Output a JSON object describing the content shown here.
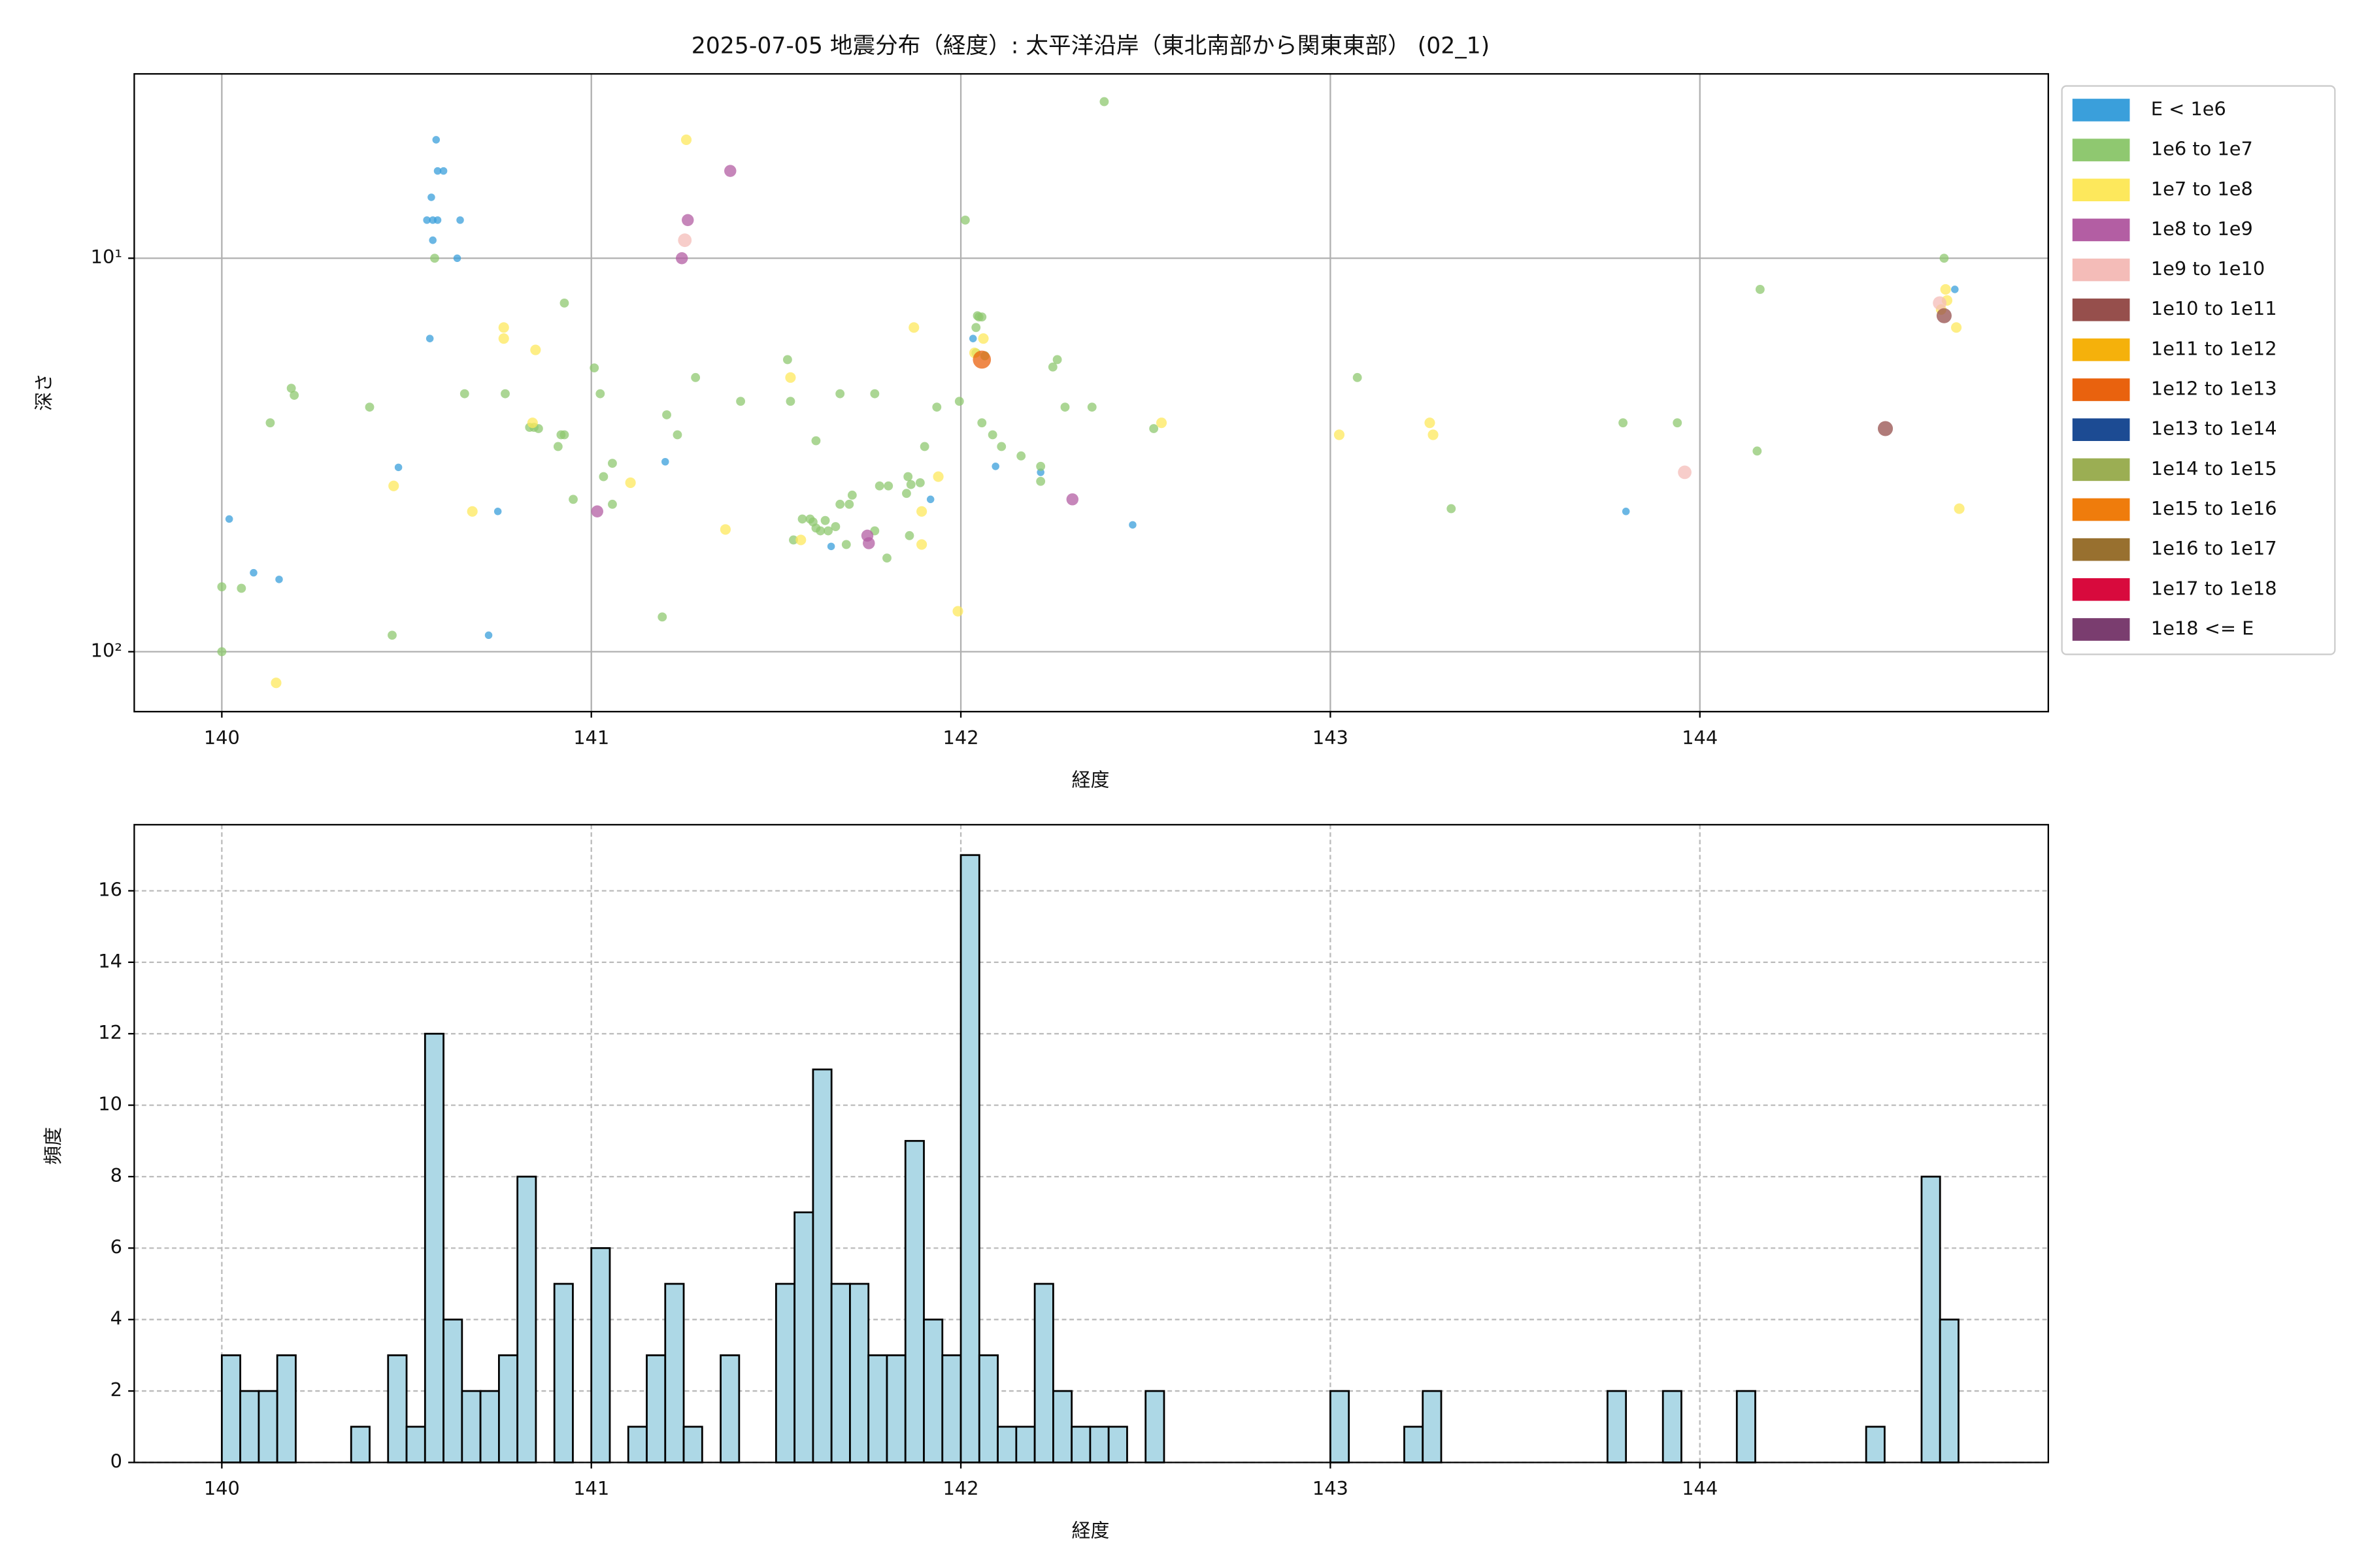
{
  "chart_data": [
    {
      "type": "scatter",
      "title": "2025-07-05 地震分布（経度）: 太平洋沿岸（東北南部から関東東部） (02_1)",
      "x_label": "経度",
      "y_label": "深さ",
      "xlim": [
        139.763,
        144.943
      ],
      "ylim": [
        142,
        3.4
      ],
      "y_scale": "log",
      "grid": true,
      "legend_position": "right",
      "xticks": [
        140,
        141,
        142,
        143,
        144
      ],
      "yticks": [
        {
          "value": 10,
          "label": "10¹"
        },
        {
          "value": 100,
          "label": "10²"
        }
      ],
      "series": [
        {
          "name": "E < 1e6",
          "color": "#3a9fdb",
          "x": [
            140.58,
            140.584,
            140.6,
            140.567,
            140.555,
            140.571,
            140.584,
            140.645,
            140.571,
            140.637,
            140.563,
            140.478,
            140.02,
            140.086,
            140.155,
            140.747,
            140.722,
            141.2,
            141.918,
            141.649,
            142.033,
            142.094,
            142.216,
            142.465,
            143.8,
            144.69
          ],
          "y": [
            5.0,
            6.0,
            6.0,
            7.0,
            8.0,
            8.0,
            8.0,
            8.0,
            9.0,
            10,
            16.0,
            34,
            46.0,
            63,
            65.5,
            44.0,
            90.8,
            32.9,
            41.0,
            54,
            16.0,
            33.8,
            35,
            47.6,
            44.0,
            12.0
          ]
        },
        {
          "name": "1e6 to 1e7",
          "color": "#8fc870",
          "x": [
            140.0,
            140.0,
            140.053,
            140.131,
            140.188,
            140.196,
            140.4,
            140.461,
            140.576,
            140.657,
            140.767,
            140.833,
            140.845,
            140.857,
            140.918,
            140.91,
            140.927,
            140.927,
            140.951,
            141.008,
            141.024,
            141.033,
            141.057,
            141.057,
            141.204,
            141.233,
            141.192,
            141.282,
            141.404,
            141.531,
            141.539,
            141.608,
            141.547,
            141.571,
            141.592,
            141.6,
            141.608,
            141.62,
            141.633,
            141.641,
            141.661,
            141.698,
            141.673,
            141.706,
            141.69,
            141.78,
            141.767,
            141.673,
            141.767,
            141.804,
            141.8,
            141.857,
            141.853,
            141.865,
            141.89,
            141.902,
            141.861,
            141.935,
            141.996,
            142.012,
            142.041,
            142.045,
            142.049,
            142.057,
            142.041,
            142.065,
            142.057,
            142.086,
            142.11,
            142.163,
            142.216,
            142.216,
            142.249,
            142.261,
            142.282,
            142.355,
            142.522,
            142.388,
            143.073,
            143.327,
            143.792,
            143.939,
            144.155,
            144.163,
            144.661
          ],
          "y": [
            68.4,
            100,
            69.0,
            26.2,
            21.4,
            22.3,
            23.9,
            90.8,
            10,
            22.1,
            22.1,
            26.9,
            26.9,
            27.1,
            28.1,
            30.1,
            28.1,
            13.0,
            41.0,
            19.0,
            22.1,
            35.9,
            33.2,
            42.2,
            25.0,
            28.1,
            81.6,
            20.1,
            23.1,
            18.1,
            23.1,
            29.1,
            52.0,
            46.0,
            46.0,
            46.8,
            48.5,
            49.3,
            46.4,
            49.3,
            48.1,
            42.2,
            42.2,
            40.0,
            53.4,
            37.9,
            49.3,
            22.1,
            22.1,
            37.9,
            57.8,
            35.9,
            39.6,
            37.6,
            37.2,
            30.1,
            50.7,
            23.9,
            23.1,
            8.0,
            15.0,
            14.0,
            14.1,
            14.1,
            17.4,
            17.7,
            26.2,
            28.1,
            30.1,
            31.8,
            33.8,
            36.9,
            18.9,
            18.1,
            23.9,
            23.9,
            27.1,
            4.0,
            20.1,
            43.3,
            26.2,
            26.2,
            30.9,
            12.0,
            10
          ]
        },
        {
          "name": "1e7 to 1e8",
          "color": "#fde85c",
          "x": [
            140.147,
            140.465,
            140.678,
            140.763,
            140.763,
            140.849,
            140.841,
            141.106,
            141.257,
            141.363,
            141.539,
            141.567,
            141.873,
            141.894,
            141.894,
            141.939,
            141.992,
            142.061,
            142.037,
            142.543,
            143.024,
            143.269,
            143.278,
            144.665,
            144.669,
            144.694,
            144.702,
            144.653
          ],
          "y": [
            120,
            37.9,
            44.0,
            16.0,
            15.0,
            17.1,
            26.2,
            37.2,
            5.0,
            48.9,
            20.1,
            52.0,
            15.0,
            44.0,
            53.4,
            35.9,
            78.9,
            16.0,
            17.4,
            26.2,
            28.1,
            26.2,
            28.1,
            12.0,
            12.8,
            15.0,
            43.3,
            13.5
          ]
        },
        {
          "name": "1e8 to 1e9",
          "color": "#b35ea3",
          "x": [
            141.376,
            141.261,
            141.245,
            141.016,
            141.747,
            141.751,
            142.302
          ],
          "y": [
            6.0,
            8.0,
            10,
            44.0,
            50.7,
            53,
            41.0
          ]
        },
        {
          "name": "1e9 to 1e10",
          "color": "#f4bcb8",
          "x": [
            141.253,
            143.959,
            144.649
          ],
          "y": [
            9.0,
            35,
            13.0
          ]
        },
        {
          "name": "1e10 to 1e11",
          "color": "#964f4c",
          "x": [
            144.502,
            144.661
          ],
          "y": [
            27.1,
            14.0
          ]
        },
        {
          "name": "1e11 to 1e12",
          "color": "#f5b10b",
          "x": [],
          "y": []
        },
        {
          "name": "1e12 to 1e13",
          "color": "#e9620e",
          "x": [
            142.057
          ],
          "y": [
            18.1
          ]
        },
        {
          "name": "1e13 to 1e14",
          "color": "#1c4b93",
          "x": [],
          "y": []
        },
        {
          "name": "1e14 to 1e15",
          "color": "#9bae53",
          "x": [],
          "y": []
        },
        {
          "name": "1e15 to 1e16",
          "color": "#ef7c0c",
          "x": [],
          "y": []
        },
        {
          "name": "1e16 to 1e17",
          "color": "#98702f",
          "x": [],
          "y": []
        },
        {
          "name": "1e17 to 1e18",
          "color": "#d80a3d",
          "x": [],
          "y": []
        },
        {
          "name": "1e18 <= E",
          "color": "#7a3d6f",
          "x": [],
          "y": []
        }
      ]
    },
    {
      "type": "histogram",
      "x_label": "経度",
      "y_label": "頻度",
      "xlim": [
        139.763,
        144.943
      ],
      "ylim": [
        0,
        17.85
      ],
      "grid": true,
      "color": "#add8e6",
      "edge_color": "#000000",
      "xticks": [
        140,
        141,
        142,
        143,
        144
      ],
      "yticks": [
        0,
        2,
        4,
        6,
        8,
        10,
        12,
        14,
        16
      ],
      "bins": [
        140.0,
        140.05,
        140.1,
        140.15,
        140.2,
        140.25,
        140.3,
        140.35,
        140.4,
        140.45,
        140.5,
        140.55,
        140.6,
        140.65,
        140.7,
        140.75,
        140.8,
        140.85,
        140.9,
        140.95,
        141.0,
        141.05,
        141.1,
        141.15,
        141.2,
        141.25,
        141.3,
        141.35,
        141.4,
        141.45,
        141.5,
        141.55,
        141.6,
        141.65,
        141.7,
        141.75,
        141.8,
        141.85,
        141.9,
        141.95,
        142.0,
        142.05,
        142.1,
        142.15,
        142.2,
        142.25,
        142.3,
        142.35,
        142.4,
        142.45,
        142.5,
        142.55,
        142.6,
        142.65,
        142.7,
        142.75,
        142.8,
        142.85,
        142.9,
        142.95,
        143.0,
        143.05,
        143.1,
        143.15,
        143.2,
        143.25,
        143.3,
        143.35,
        143.4,
        143.45,
        143.5,
        143.55,
        143.6,
        143.65,
        143.7,
        143.75,
        143.8,
        143.85,
        143.9,
        143.95,
        144.0,
        144.05,
        144.1,
        144.15,
        144.2,
        144.25,
        144.3,
        144.35,
        144.4,
        144.45,
        144.5,
        144.55,
        144.6,
        144.65,
        144.7
      ],
      "values": [
        3,
        2,
        2,
        3,
        0,
        0,
        0,
        1,
        0,
        3,
        1,
        12,
        4,
        2,
        2,
        3,
        8,
        0,
        5,
        0,
        6,
        0,
        1,
        3,
        5,
        1,
        0,
        3,
        0,
        0,
        5,
        7,
        11,
        5,
        5,
        3,
        3,
        9,
        4,
        3,
        17,
        3,
        1,
        1,
        5,
        2,
        1,
        1,
        1,
        0,
        2,
        0,
        0,
        0,
        0,
        0,
        0,
        0,
        0,
        0,
        2,
        0,
        0,
        0,
        1,
        2,
        0,
        0,
        0,
        0,
        0,
        0,
        0,
        0,
        0,
        2,
        0,
        0,
        2,
        0,
        0,
        0,
        2,
        0,
        0,
        0,
        0,
        0,
        0,
        1,
        0,
        0,
        8,
        4
      ]
    }
  ]
}
